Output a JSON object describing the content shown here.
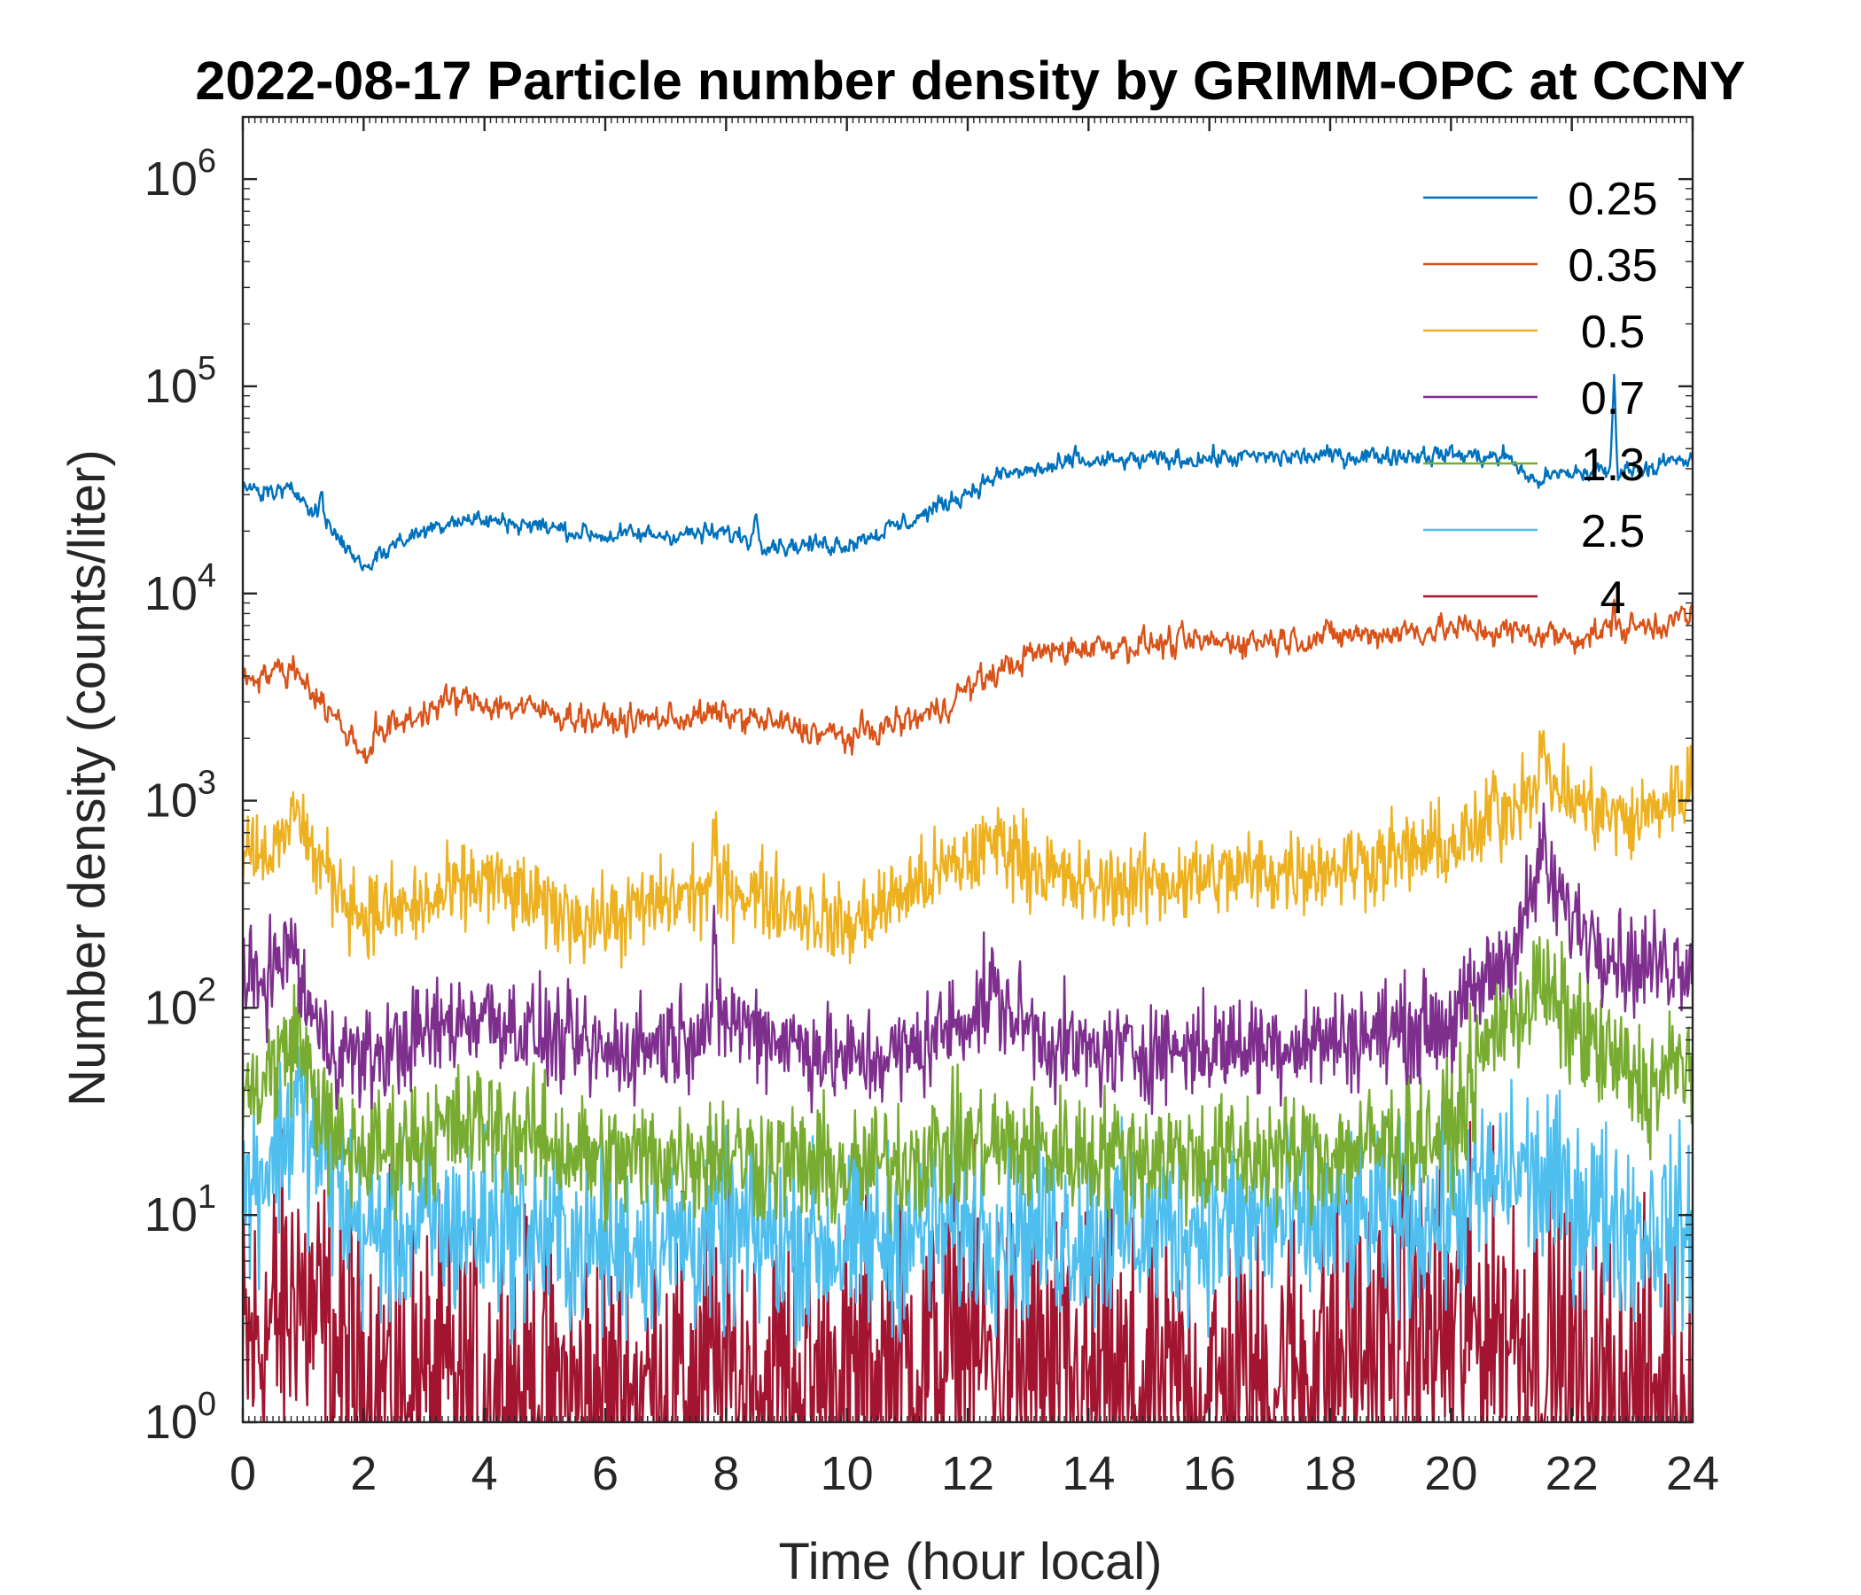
{
  "chart_data": {
    "type": "line",
    "title": "2022-08-17 Particle number density by GRIMM-OPC at CCNY",
    "xlabel": "Time (hour local)",
    "ylabel": "Number density (counts/liter)",
    "xlim": [
      0,
      24
    ],
    "ylim_log10": [
      0,
      6.3
    ],
    "yscale": "log",
    "x_ticks": [
      "0",
      "2",
      "4",
      "6",
      "8",
      "10",
      "12",
      "14",
      "16",
      "18",
      "20",
      "22",
      "24"
    ],
    "y_ticks": [
      {
        "base": "10",
        "exp": "0"
      },
      {
        "base": "10",
        "exp": "1"
      },
      {
        "base": "10",
        "exp": "2"
      },
      {
        "base": "10",
        "exp": "3"
      },
      {
        "base": "10",
        "exp": "4"
      },
      {
        "base": "10",
        "exp": "5"
      },
      {
        "base": "10",
        "exp": "6"
      }
    ],
    "legend_position": "top-right",
    "series": [
      {
        "name": "0.25",
        "color": "#0072BD",
        "noise": 0.04,
        "spikes": [
          [
            1.3,
            0.15
          ],
          [
            8.5,
            0.15
          ],
          [
            13.8,
            0.08
          ],
          [
            22.7,
            0.45
          ]
        ],
        "x": [
          0,
          1,
          1.2,
          2,
          2.6,
          3.5,
          4.5,
          6,
          8,
          9,
          10,
          11,
          11.5,
          12.5,
          14,
          16,
          18,
          20,
          21,
          21.3,
          22,
          23,
          24
        ],
        "y": [
          32000,
          30000,
          25000,
          13500,
          18000,
          23000,
          22000,
          19000,
          19500,
          17000,
          17500,
          22000,
          26000,
          37000,
          43000,
          45000,
          46000,
          47000,
          45000,
          35000,
          38000,
          40000,
          44000
        ]
      },
      {
        "name": "0.35",
        "color": "#D95319",
        "noise": 0.06,
        "spikes": [
          [
            2.2,
            0.1
          ],
          [
            22.7,
            0.15
          ]
        ],
        "x": [
          0,
          0.9,
          1.3,
          2,
          2.5,
          3.5,
          5,
          6,
          8,
          9,
          10,
          11.5,
          12,
          13,
          14,
          16,
          18,
          20,
          21,
          22,
          23,
          24
        ],
        "y": [
          4000,
          4300,
          3000,
          1700,
          2300,
          3100,
          2700,
          2400,
          2600,
          2300,
          2000,
          2700,
          3500,
          5000,
          5600,
          5800,
          6200,
          6800,
          6500,
          6200,
          6800,
          7800
        ]
      },
      {
        "name": "0.5",
        "color": "#EDB120",
        "noise": 0.1,
        "spikes": [
          [
            0.9,
            0.15
          ],
          [
            7.8,
            0.3
          ],
          [
            20.7,
            0.2
          ],
          [
            21.5,
            0.15
          ]
        ],
        "x": [
          0,
          0.6,
          0.9,
          1.2,
          2,
          3,
          4,
          5,
          6,
          7,
          8,
          9,
          10,
          11,
          12,
          12.5,
          13.5,
          14,
          16,
          18,
          20,
          20.5,
          21,
          21.5,
          22,
          23,
          24
        ],
        "y": [
          620,
          570,
          900,
          520,
          280,
          310,
          420,
          300,
          260,
          330,
          390,
          320,
          240,
          370,
          520,
          650,
          420,
          380,
          430,
          480,
          600,
          700,
          950,
          1400,
          1000,
          780,
          1200
        ]
      },
      {
        "name": "0.7",
        "color": "#7E2F8E",
        "noise": 0.12,
        "spikes": [
          [
            0.8,
            0.15
          ],
          [
            7.8,
            0.35
          ],
          [
            12.4,
            0.1
          ],
          [
            21.5,
            0.25
          ]
        ],
        "x": [
          0,
          0.8,
          1.3,
          2,
          3,
          4,
          5,
          6,
          7,
          8,
          9,
          10,
          11,
          12.4,
          13.5,
          14,
          16,
          18,
          20,
          21,
          21.5,
          22,
          23,
          24
        ],
        "y": [
          120,
          180,
          70,
          55,
          75,
          95,
          72,
          60,
          70,
          90,
          70,
          55,
          60,
          110,
          65,
          60,
          65,
          70,
          85,
          190,
          460,
          270,
          160,
          170
        ]
      },
      {
        "name": "1.3",
        "color": "#77AC30",
        "noise": 0.15,
        "spikes": [
          [
            0.9,
            0.2
          ],
          [
            21.5,
            0.1
          ]
        ],
        "x": [
          0,
          0.9,
          1.5,
          2,
          4,
          6,
          8,
          10,
          12,
          14,
          16,
          18,
          20,
          20.8,
          21.5,
          22.5,
          23.3,
          24
        ],
        "y": [
          35,
          70,
          22,
          20,
          28,
          18,
          20,
          16,
          22,
          20,
          19,
          20,
          25,
          90,
          120,
          60,
          40,
          60
        ]
      },
      {
        "name": "2.5",
        "color": "#4DBEEE",
        "noise": 0.22,
        "spikes": [
          [
            0.9,
            0.25
          ]
        ],
        "x": [
          0,
          0.9,
          2,
          4,
          6,
          8,
          10,
          12,
          14,
          16,
          18,
          20,
          21,
          22,
          23,
          24
        ],
        "y": [
          12,
          30,
          8,
          9,
          7,
          8,
          7,
          9,
          8,
          9,
          9,
          10,
          17,
          12,
          9,
          8
        ]
      },
      {
        "name": "4",
        "color": "#A2142F",
        "noise": 0.4,
        "spikes": [
          [
            0.9,
            0.3
          ]
        ],
        "x": [
          0,
          0.9,
          2,
          4,
          6,
          8,
          10,
          12,
          14,
          16,
          18,
          20,
          21,
          22,
          23,
          24
        ],
        "y": [
          2,
          4,
          1.5,
          1.4,
          1.3,
          1.6,
          1.5,
          2.2,
          1.4,
          1.3,
          2,
          2.6,
          3,
          1.6,
          1.3,
          1.3
        ]
      }
    ]
  }
}
